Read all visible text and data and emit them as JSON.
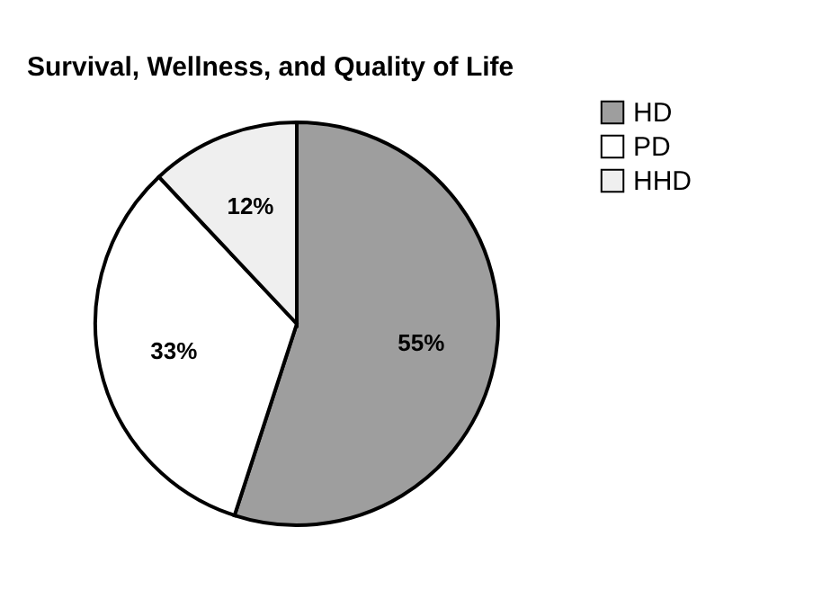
{
  "chart_data": {
    "type": "pie",
    "title": "Survival, Wellness, and Quality of Life",
    "categories": [
      "HD",
      "PD",
      "HHD"
    ],
    "values": [
      55,
      33,
      12
    ],
    "colors": [
      "#9e9e9e",
      "#ffffff",
      "#efefef"
    ],
    "value_labels": [
      "55%",
      "33%",
      "12%"
    ],
    "legend": "right"
  }
}
